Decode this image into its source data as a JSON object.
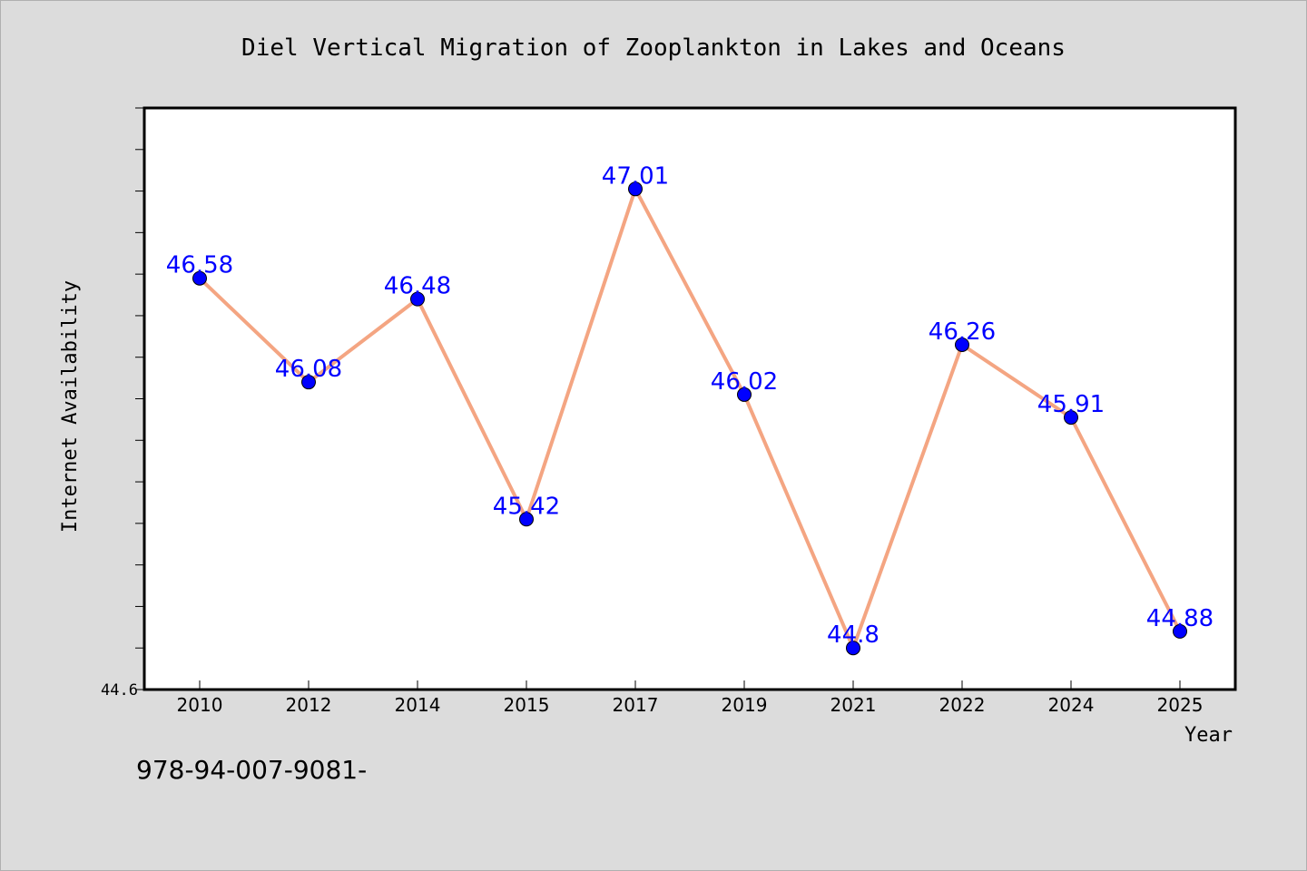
{
  "chart_data": {
    "type": "line",
    "title": "Diel Vertical Migration of Zooplankton in Lakes and Oceans",
    "xlabel": "Year",
    "ylabel": "Internet Availability",
    "categories": [
      "2010",
      "2012",
      "2014",
      "2015",
      "2017",
      "2019",
      "2021",
      "2022",
      "2024",
      "2025"
    ],
    "series": [
      {
        "values": [
          46.58,
          46.08,
          46.48,
          45.42,
          47.01,
          46.02,
          44.8,
          46.26,
          45.91,
          44.88
        ],
        "labels": [
          "46.58",
          "46.08",
          "46.48",
          "45.42",
          "47.01",
          "46.02",
          "44.8",
          "46.26",
          "45.91",
          "44.88"
        ]
      }
    ],
    "ylim": [
      44.6,
      47.4
    ],
    "y_tick_label": "44.6",
    "grid": false,
    "colors": {
      "line": "#f4a582",
      "marker": "#0000ff",
      "label": "#0000ff",
      "plot_bg": "#ffffff",
      "page_bg": "#dcdcdc"
    }
  },
  "footnote": "978-94-007-9081-"
}
